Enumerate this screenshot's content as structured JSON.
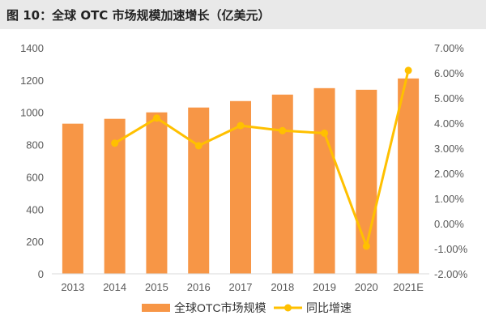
{
  "title": "图 10：全球 OTC 市场规模加速增长（亿美元）",
  "chart_data": {
    "type": "bar",
    "categories": [
      "2013",
      "2014",
      "2015",
      "2016",
      "2017",
      "2018",
      "2019",
      "2020",
      "2021E"
    ],
    "series": [
      {
        "name": "全球OTC市场规模",
        "type": "bar",
        "axis": "left",
        "color": "#F79646",
        "values": [
          930,
          960,
          1000,
          1030,
          1070,
          1110,
          1150,
          1140,
          1210
        ]
      },
      {
        "name": "同比增速",
        "type": "line",
        "axis": "right",
        "color": "#FFC000",
        "values": [
          null,
          3.2,
          4.2,
          3.1,
          3.9,
          3.7,
          3.6,
          -0.9,
          6.1
        ]
      }
    ],
    "y_left": {
      "ylim": [
        0,
        1400
      ],
      "ticks": [
        "0",
        "200",
        "400",
        "600",
        "800",
        "1000",
        "1200",
        "1400"
      ]
    },
    "y_right": {
      "ylim": [
        -2,
        7
      ],
      "ticks": [
        "-2.00%",
        "-1.00%",
        "0.00%",
        "1.00%",
        "2.00%",
        "3.00%",
        "4.00%",
        "5.00%",
        "6.00%",
        "7.00%"
      ]
    },
    "grid": false,
    "legend": "bottom"
  }
}
